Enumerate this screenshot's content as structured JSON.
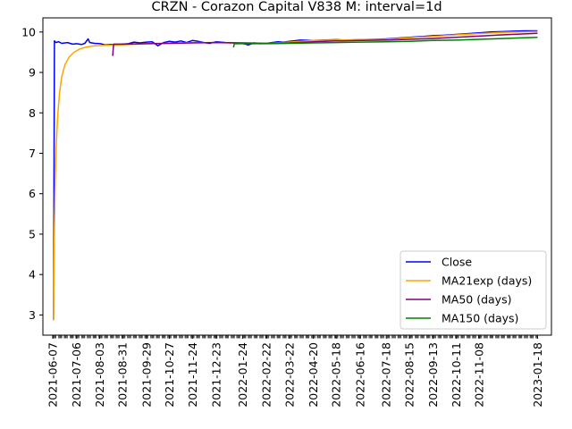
{
  "chart_data": {
    "type": "line",
    "title": "CRZN - Corazon Capital V838 M: interval=1d",
    "xlabel": "",
    "ylabel": "",
    "ylim": [
      2.5,
      10.35
    ],
    "x_range": [
      "2021-05-26",
      "2023-02-04"
    ],
    "y_ticks": [
      3,
      4,
      5,
      6,
      7,
      8,
      9,
      10
    ],
    "x_ticks": [
      "2021-06-07",
      "2021-07-06",
      "2021-08-03",
      "2021-08-31",
      "2021-09-29",
      "2021-10-27",
      "2021-11-24",
      "2021-12-23",
      "2022-01-24",
      "2022-02-22",
      "2022-03-22",
      "2022-04-20",
      "2022-05-18",
      "2022-06-16",
      "2022-07-18",
      "2022-08-15",
      "2022-09-13",
      "2022-10-11",
      "2022-11-08",
      "2023-01-18"
    ],
    "grid": false,
    "legend": "bottom-right",
    "series": [
      {
        "name": "Close",
        "color": "#0000ff",
        "points": [
          [
            "2021-06-07",
            2.88
          ],
          [
            "2021-06-08",
            2.88
          ],
          [
            "2021-06-09",
            9.78
          ],
          [
            "2021-06-11",
            9.74
          ],
          [
            "2021-06-14",
            9.76
          ],
          [
            "2021-06-18",
            9.72
          ],
          [
            "2021-06-25",
            9.74
          ],
          [
            "2021-07-01",
            9.7
          ],
          [
            "2021-07-06",
            9.71
          ],
          [
            "2021-07-12",
            9.69
          ],
          [
            "2021-07-16",
            9.72
          ],
          [
            "2021-07-20",
            9.83
          ],
          [
            "2021-07-22",
            9.74
          ],
          [
            "2021-07-28",
            9.72
          ],
          [
            "2021-08-04",
            9.71
          ],
          [
            "2021-08-10",
            9.68
          ],
          [
            "2021-08-17",
            9.69
          ],
          [
            "2021-08-24",
            9.68
          ],
          [
            "2021-08-31",
            9.7
          ],
          [
            "2021-09-07",
            9.71
          ],
          [
            "2021-09-14",
            9.75
          ],
          [
            "2021-09-21",
            9.73
          ],
          [
            "2021-09-29",
            9.75
          ],
          [
            "2021-10-06",
            9.76
          ],
          [
            "2021-10-13",
            9.66
          ],
          [
            "2021-10-20",
            9.74
          ],
          [
            "2021-10-27",
            9.77
          ],
          [
            "2021-11-03",
            9.75
          ],
          [
            "2021-11-10",
            9.78
          ],
          [
            "2021-11-17",
            9.74
          ],
          [
            "2021-11-24",
            9.79
          ],
          [
            "2021-12-01",
            9.77
          ],
          [
            "2021-12-08",
            9.74
          ],
          [
            "2021-12-15",
            9.72
          ],
          [
            "2021-12-23",
            9.76
          ],
          [
            "2022-01-03",
            9.74
          ],
          [
            "2022-01-10",
            9.73
          ],
          [
            "2022-01-17",
            9.71
          ],
          [
            "2022-01-24",
            9.72
          ],
          [
            "2022-01-31",
            9.68
          ],
          [
            "2022-02-07",
            9.73
          ],
          [
            "2022-02-14",
            9.71
          ],
          [
            "2022-02-22",
            9.72
          ],
          [
            "2022-03-01",
            9.74
          ],
          [
            "2022-03-08",
            9.76
          ],
          [
            "2022-03-15",
            9.75
          ],
          [
            "2022-03-22",
            9.77
          ],
          [
            "2022-04-04",
            9.8
          ],
          [
            "2022-04-20",
            9.79
          ],
          [
            "2022-05-02",
            9.8
          ],
          [
            "2022-05-18",
            9.81
          ],
          [
            "2022-06-01",
            9.8
          ],
          [
            "2022-06-16",
            9.81
          ],
          [
            "2022-07-01",
            9.82
          ],
          [
            "2022-07-18",
            9.83
          ],
          [
            "2022-08-01",
            9.85
          ],
          [
            "2022-08-15",
            9.87
          ],
          [
            "2022-09-01",
            9.89
          ],
          [
            "2022-09-13",
            9.91
          ],
          [
            "2022-09-27",
            9.92
          ],
          [
            "2022-10-11",
            9.94
          ],
          [
            "2022-10-25",
            9.96
          ],
          [
            "2022-11-08",
            9.98
          ],
          [
            "2022-11-22",
            10.0
          ],
          [
            "2022-12-06",
            10.01
          ],
          [
            "2022-12-20",
            10.02
          ],
          [
            "2023-01-03",
            10.03
          ],
          [
            "2023-01-18",
            10.03
          ]
        ]
      },
      {
        "name": "MA21exp (days)",
        "color": "#ffa500",
        "points": [
          [
            "2021-06-07",
            2.88
          ],
          [
            "2021-06-08",
            2.88
          ],
          [
            "2021-06-09",
            5.2
          ],
          [
            "2021-06-10",
            6.3
          ],
          [
            "2021-06-11",
            7.1
          ],
          [
            "2021-06-13",
            7.9
          ],
          [
            "2021-06-15",
            8.45
          ],
          [
            "2021-06-18",
            8.9
          ],
          [
            "2021-06-22",
            9.2
          ],
          [
            "2021-06-27",
            9.38
          ],
          [
            "2021-07-03",
            9.5
          ],
          [
            "2021-07-10",
            9.58
          ],
          [
            "2021-07-18",
            9.63
          ],
          [
            "2021-07-28",
            9.66
          ],
          [
            "2021-08-10",
            9.67
          ],
          [
            "2021-08-31",
            9.68
          ],
          [
            "2021-09-29",
            9.71
          ],
          [
            "2021-10-27",
            9.72
          ],
          [
            "2021-11-24",
            9.74
          ],
          [
            "2021-12-23",
            9.74
          ],
          [
            "2022-01-24",
            9.72
          ],
          [
            "2022-02-22",
            9.72
          ],
          [
            "2022-03-22",
            9.75
          ],
          [
            "2022-04-20",
            9.79
          ],
          [
            "2022-05-18",
            9.8
          ],
          [
            "2022-06-16",
            9.81
          ],
          [
            "2022-07-18",
            9.82
          ],
          [
            "2022-08-15",
            9.86
          ],
          [
            "2022-09-13",
            9.89
          ],
          [
            "2022-10-11",
            9.93
          ],
          [
            "2022-11-08",
            9.96
          ],
          [
            "2022-12-06",
            9.99
          ],
          [
            "2023-01-18",
            10.01
          ]
        ]
      },
      {
        "name": "MA50 (days)",
        "color": "#800080",
        "points": [
          [
            "2021-08-19",
            9.41
          ],
          [
            "2021-08-20",
            9.7
          ],
          [
            "2021-08-31",
            9.7
          ],
          [
            "2021-09-29",
            9.71
          ],
          [
            "2021-10-27",
            9.72
          ],
          [
            "2021-11-24",
            9.73
          ],
          [
            "2021-12-23",
            9.74
          ],
          [
            "2022-01-24",
            9.73
          ],
          [
            "2022-02-22",
            9.72
          ],
          [
            "2022-03-22",
            9.73
          ],
          [
            "2022-04-20",
            9.76
          ],
          [
            "2022-05-18",
            9.78
          ],
          [
            "2022-06-16",
            9.79
          ],
          [
            "2022-07-18",
            9.8
          ],
          [
            "2022-08-15",
            9.82
          ],
          [
            "2022-09-13",
            9.84
          ],
          [
            "2022-10-11",
            9.87
          ],
          [
            "2022-11-08",
            9.9
          ],
          [
            "2022-12-06",
            9.93
          ],
          [
            "2023-01-18",
            9.97
          ]
        ]
      },
      {
        "name": "MA150 (days)",
        "color": "#008000",
        "points": [
          [
            "2022-01-13",
            9.62
          ],
          [
            "2022-01-14",
            9.71
          ],
          [
            "2022-01-24",
            9.71
          ],
          [
            "2022-02-22",
            9.71
          ],
          [
            "2022-03-22",
            9.72
          ],
          [
            "2022-04-20",
            9.73
          ],
          [
            "2022-05-18",
            9.74
          ],
          [
            "2022-06-16",
            9.75
          ],
          [
            "2022-07-18",
            9.76
          ],
          [
            "2022-08-15",
            9.77
          ],
          [
            "2022-09-13",
            9.79
          ],
          [
            "2022-10-11",
            9.8
          ],
          [
            "2022-11-08",
            9.82
          ],
          [
            "2022-12-06",
            9.84
          ],
          [
            "2023-01-18",
            9.87
          ]
        ]
      }
    ]
  }
}
